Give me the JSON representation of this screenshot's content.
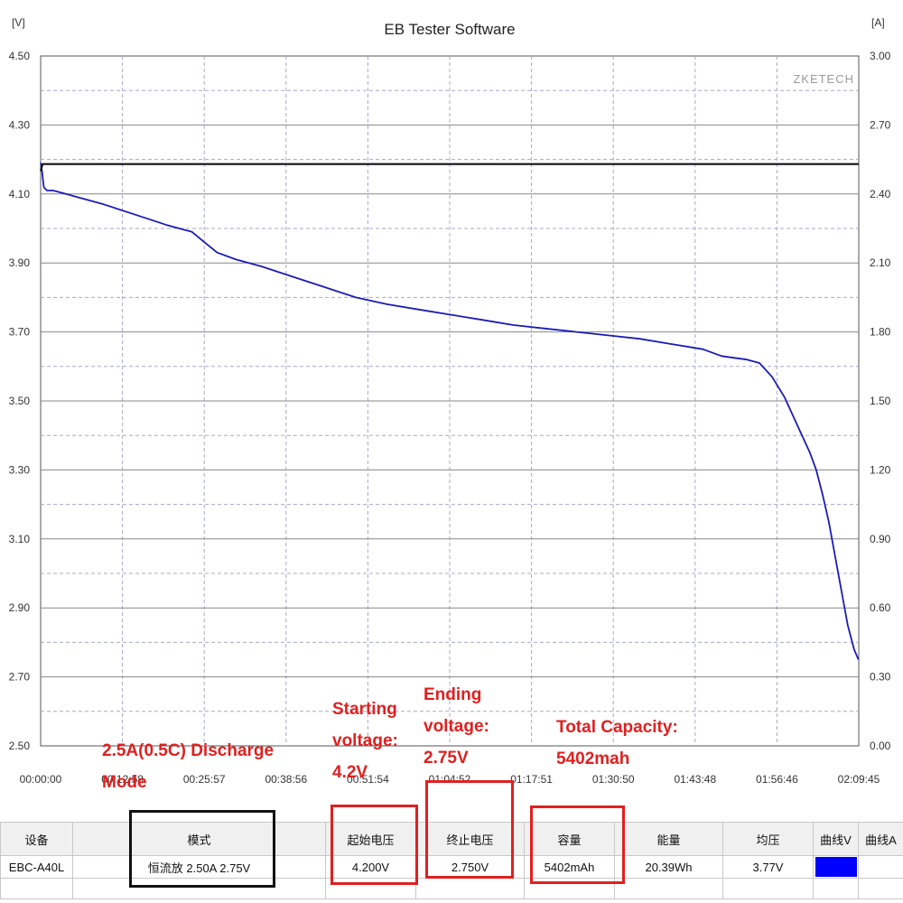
{
  "chart_data": {
    "type": "line",
    "title": "EB Tester Software",
    "watermark": "ZKETECH",
    "y_left_unit": "[V]",
    "y_right_unit": "[A]",
    "ylim_left": [
      2.5,
      4.5
    ],
    "ylim_right": [
      0.0,
      3.0
    ],
    "y_left_ticks": [
      "4.50",
      "4.30",
      "4.10",
      "3.90",
      "3.70",
      "3.50",
      "3.30",
      "3.10",
      "2.90",
      "2.70",
      "2.50"
    ],
    "y_right_ticks": [
      "3.00",
      "2.70",
      "2.40",
      "2.10",
      "1.80",
      "1.50",
      "1.20",
      "0.90",
      "0.60",
      "0.30",
      "0.00"
    ],
    "x_ticks": [
      "00:00:00",
      "00:12:58",
      "00:25:57",
      "00:38:56",
      "00:51:54",
      "01:04:52",
      "01:17:51",
      "01:30:50",
      "01:43:48",
      "01:56:46",
      "02:09:45"
    ],
    "grid": true,
    "series": [
      {
        "axis": "left",
        "color": "#1c1cb4",
        "x_minutes": [
          0,
          0.2,
          0.5,
          1,
          2,
          4,
          6,
          10,
          15,
          20,
          24,
          26,
          28,
          31,
          35,
          40,
          45,
          50,
          55,
          60,
          65,
          70,
          75,
          80,
          85,
          90,
          95,
          100,
          105,
          108,
          110,
          112,
          114,
          116,
          118,
          120,
          122,
          123,
          124,
          125,
          126,
          127,
          128,
          129,
          129.7
        ],
        "values": [
          4.19,
          4.17,
          4.12,
          4.11,
          4.11,
          4.1,
          4.09,
          4.07,
          4.04,
          4.01,
          3.99,
          3.96,
          3.93,
          3.91,
          3.89,
          3.86,
          3.83,
          3.8,
          3.78,
          3.765,
          3.75,
          3.735,
          3.72,
          3.71,
          3.7,
          3.69,
          3.68,
          3.665,
          3.65,
          3.63,
          3.625,
          3.62,
          3.61,
          3.57,
          3.51,
          3.43,
          3.35,
          3.3,
          3.23,
          3.15,
          3.05,
          2.95,
          2.85,
          2.78,
          2.75
        ]
      },
      {
        "axis": "right",
        "color": "#111111",
        "x_minutes": [
          0,
          0.3,
          0.6,
          129.75
        ],
        "values": [
          2.5,
          2.53,
          2.53,
          2.53
        ]
      }
    ]
  },
  "annotations": {
    "mode": "2.5A(0.5C) Discharge Mode",
    "start_voltage": "Starting voltage: 4.2V",
    "end_voltage": "Ending voltage: 2.75V",
    "capacity": "Total Capacity: 5402mah"
  },
  "table": {
    "headers": [
      "设备",
      "模式",
      "起始电压",
      "终止电压",
      "容量",
      "能量",
      "均压",
      "曲线V",
      "曲线A"
    ],
    "values": [
      "EBC-A40L",
      "恒流放 2.50A 2.75V",
      "4.200V",
      "2.750V",
      "5402mAh",
      "20.39Wh",
      "3.77V",
      "",
      ""
    ],
    "swatch_color": "#0000ff"
  }
}
